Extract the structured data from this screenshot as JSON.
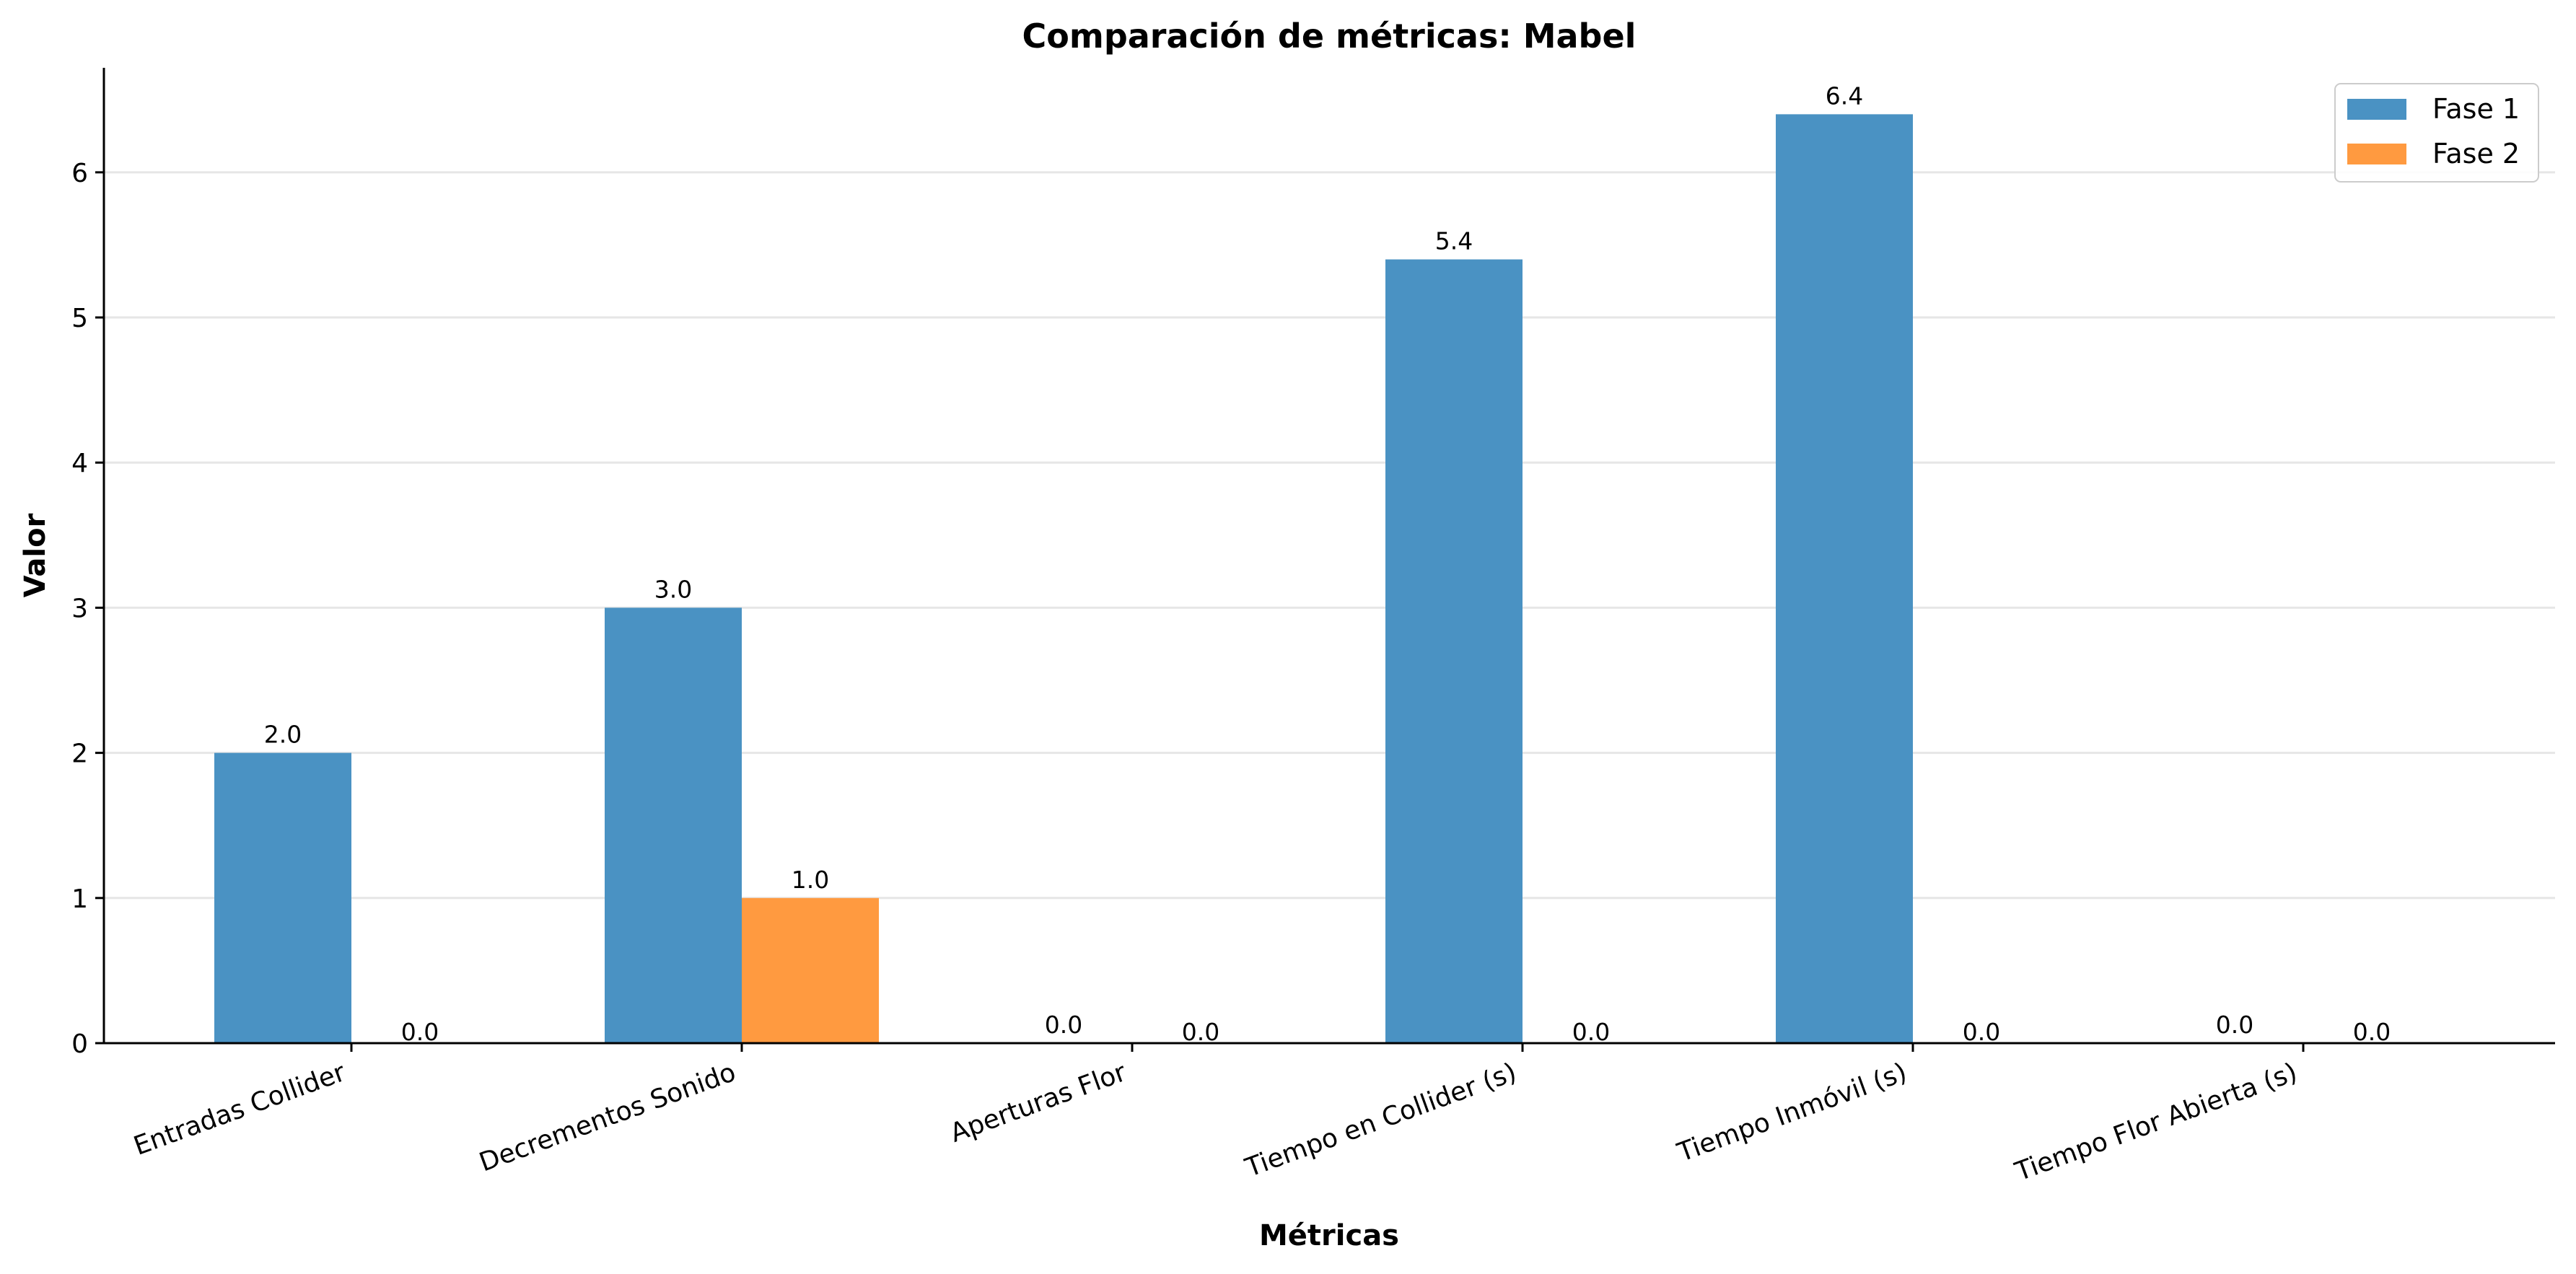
{
  "chart_data": {
    "type": "bar",
    "title": "Comparación de métricas: Mabel",
    "xlabel": "Métricas",
    "ylabel": "Valor",
    "categories": [
      "Entradas Collider",
      "Decrementos Sonido",
      "Aperturas Flor",
      "Tiempo en Collider (s)",
      "Tiempo Inmóvil (s)",
      "Tiempo Flor Abierta (s)"
    ],
    "series": [
      {
        "name": "Fase 1",
        "color": "#4a92c3",
        "values": [
          2.0,
          3.0,
          0.0,
          5.4,
          6.4,
          0.0
        ],
        "labels": [
          "2.0",
          "3.0",
          "0.0",
          "5.4",
          "6.4",
          "0.0"
        ]
      },
      {
        "name": "Fase 2",
        "color": "#ff9a40",
        "values": [
          0.0,
          1.0,
          0.0,
          0.0,
          0.0,
          0.0
        ],
        "labels": [
          "0.0",
          "1.0",
          "0.0",
          "0.0",
          "0.0",
          "0.0"
        ]
      }
    ],
    "ylim": [
      0,
      6.72
    ],
    "yticks": [
      0,
      1,
      2,
      3,
      4,
      5,
      6
    ],
    "grid": "y",
    "legend": "top-right"
  }
}
